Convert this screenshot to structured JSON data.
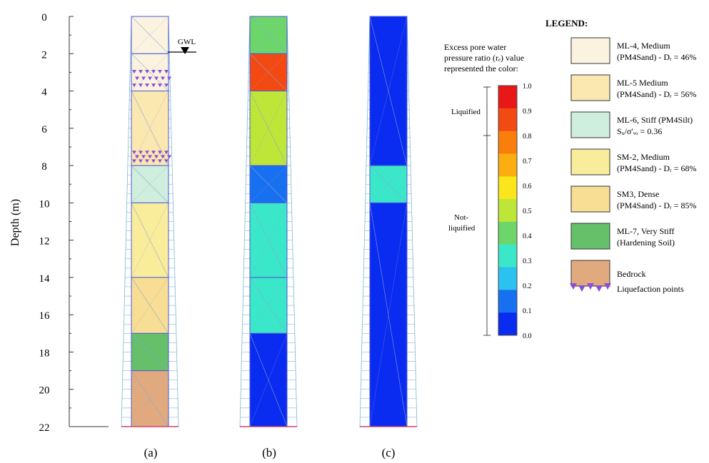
{
  "axis": {
    "ylabel": "Depth (m)",
    "ticks": [
      "0",
      "2",
      "4",
      "6",
      "8",
      "10",
      "12",
      "14",
      "16",
      "18",
      "20",
      "22"
    ],
    "min_depth": 0,
    "max_depth": 22
  },
  "gwl": {
    "label": "GWL",
    "depth_m": 2
  },
  "layers": [
    {
      "id": "ML-4",
      "top": 0,
      "bottom": 2,
      "color": "#fbf3df"
    },
    {
      "id": "ML-5a",
      "top": 2,
      "bottom": 4,
      "color": "#fbf3df"
    },
    {
      "id": "ML-5",
      "top": 4,
      "bottom": 8,
      "color": "#fbe7b0"
    },
    {
      "id": "ML-6",
      "top": 8,
      "bottom": 10,
      "color": "#cfeedd"
    },
    {
      "id": "SM-2",
      "top": 10,
      "bottom": 14,
      "color": "#f9ec9a"
    },
    {
      "id": "SM3",
      "top": 14,
      "bottom": 17,
      "color": "#f8dd94"
    },
    {
      "id": "ML-7",
      "top": 17,
      "bottom": 19,
      "color": "#66c06a"
    },
    {
      "id": "Bedrock",
      "top": 19,
      "bottom": 22,
      "color": "#e0aa7e"
    }
  ],
  "liquefaction_zones_a": [
    {
      "top": 2.8,
      "bottom": 3.9
    },
    {
      "top": 7.2,
      "bottom": 7.9
    }
  ],
  "pore_pressure_b": [
    {
      "top": 0,
      "bottom": 2,
      "value": 0.45
    },
    {
      "top": 2,
      "bottom": 4,
      "value": 0.9
    },
    {
      "top": 4,
      "bottom": 8,
      "value": 0.5
    },
    {
      "top": 8,
      "bottom": 10,
      "value": 0.1
    },
    {
      "top": 10,
      "bottom": 14,
      "value": 0.32
    },
    {
      "top": 14,
      "bottom": 17,
      "value": 0.3
    },
    {
      "top": 17,
      "bottom": 22,
      "value": 0.05
    }
  ],
  "pore_pressure_c": [
    {
      "top": 0,
      "bottom": 8,
      "value": 0.05
    },
    {
      "top": 8,
      "bottom": 10,
      "value": 0.3
    },
    {
      "top": 10,
      "bottom": 22,
      "value": 0.05
    }
  ],
  "panel_labels": [
    "(a)",
    "(b)",
    "(c)"
  ],
  "colorbar": {
    "title_lines": [
      "Excess pore water",
      "pressure ratio (rₑ) value",
      "represented the color:"
    ],
    "ticks": [
      "1.0",
      "0.9",
      "0.8",
      "0.7",
      "0.6",
      "0.5",
      "0.4",
      "0.3",
      "0.2",
      "0.1",
      "0.0"
    ],
    "colors": [
      "#e81818",
      "#f24a12",
      "#fa7e0c",
      "#fcae10",
      "#fae61a",
      "#bde639",
      "#6cd66b",
      "#3ae7c9",
      "#2bc2f0",
      "#1770f0",
      "#0a2bf0"
    ],
    "liquified_label": "Liquified",
    "not_liquified_lines": [
      "Not-",
      "liquified"
    ],
    "liquefaction_threshold": 0.8
  },
  "legend": {
    "title": "LEGEND:",
    "items": [
      {
        "color": "#fbf3df",
        "lines": [
          "ML-4, Medium",
          "(PM4Sand) - Dᵣ = 46%"
        ]
      },
      {
        "color": "#fbe7b0",
        "lines": [
          "ML-5 Medium",
          "(PM4Sand) - Dᵣ = 56%"
        ]
      },
      {
        "color": "#cfeedd",
        "lines": [
          "ML-6, Stiff (PM4Silt)",
          "Sᵤ/σ'ᵥₒ = 0.36"
        ]
      },
      {
        "color": "#f9ec9a",
        "lines": [
          "SM-2, Medium",
          "(PM4Sand) - Dᵣ = 68%"
        ]
      },
      {
        "color": "#f8dd94",
        "lines": [
          "SM3, Dense",
          "(PM4Sand) - Dᵣ = 85%"
        ]
      },
      {
        "color": "#66c06a",
        "lines": [
          "ML-7, Very Stiff",
          "(Hardening Soil)"
        ]
      },
      {
        "color": "#e0aa7e",
        "lines": [
          "Bedrock"
        ]
      }
    ],
    "liquefaction_label": "Liquefaction points",
    "liquefaction_marker_color": "#8a4fd6"
  }
}
